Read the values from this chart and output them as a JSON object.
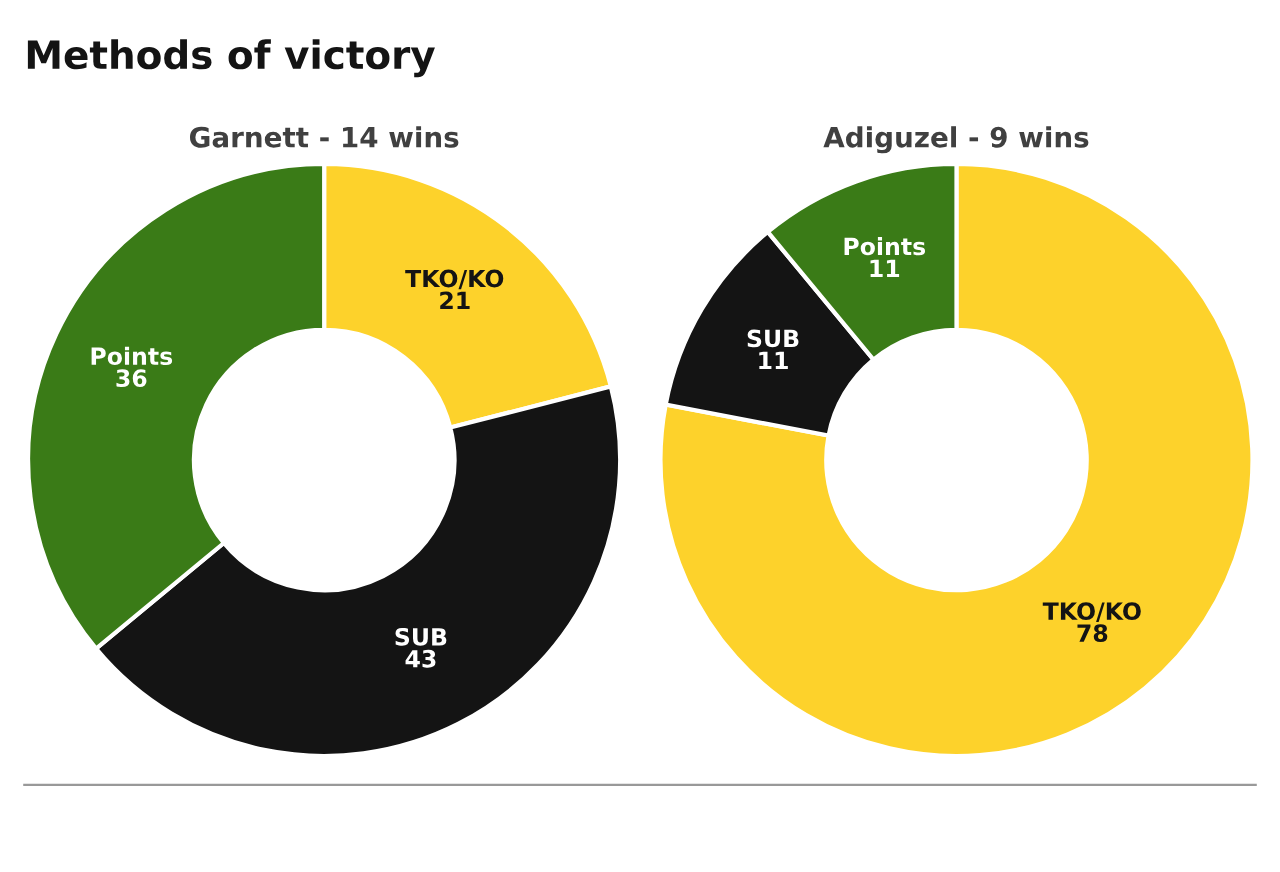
{
  "chart_data": [
    {
      "type": "donut",
      "title": "Garnett - 14 wins",
      "annotations": [
        "Methods of victory"
      ],
      "categories": [
        "TKO/KO",
        "SUB",
        "Points"
      ],
      "values": [
        21,
        43,
        36
      ],
      "colors": [
        "#fdd22b",
        "#141414",
        "#3a7b17"
      ],
      "data_labels": true
    },
    {
      "type": "donut",
      "title": "Adiguzel - 9 wins",
      "categories": [
        "TKO/KO",
        "SUB",
        "Points"
      ],
      "values": [
        78,
        11,
        11
      ],
      "colors": [
        "#fdd22b",
        "#141414",
        "#3a7b17"
      ],
      "data_labels": true
    }
  ]
}
